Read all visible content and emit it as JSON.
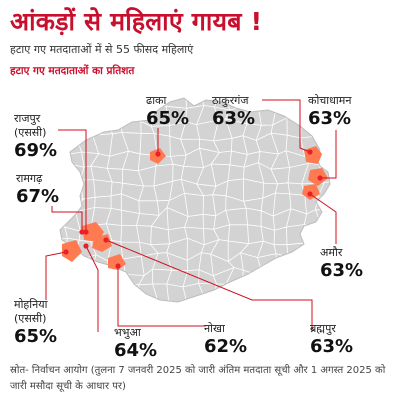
{
  "header": {
    "title": "आंकड़ों से महिलाएं गायब !",
    "subtitle": "हटाए गए मतदाताओं में से 55 फीसद महिलाएं",
    "chart_title": "हटाए गए मतदाताओं का प्रतिशत"
  },
  "colors": {
    "title": "#c8102e",
    "map_fill": "#d3d3d3",
    "district_lines": "#ffffff",
    "highlight": "#ff7a50",
    "marker": "#e8202a",
    "leader_line": "#d0101e"
  },
  "map": {
    "region": "बिहार",
    "highlighted_constituencies": [
      "ढाका",
      "ठाकुरगंज",
      "कोचाधामन",
      "अमौर",
      "ब्रह्मपुर",
      "नोखा",
      "भभुआ",
      "मोहनिया (एससी)",
      "रामगढ़",
      "राजपुर (एससी)"
    ]
  },
  "callouts": [
    {
      "name": "राजपुर",
      "name2": "(एससी)",
      "value": "69%"
    },
    {
      "name": "ढाका",
      "value": "65%"
    },
    {
      "name": "ठाकुरगंज",
      "value": "63%"
    },
    {
      "name": "कोचाधामन",
      "value": "63%"
    },
    {
      "name": "रामगढ़",
      "value": "67%"
    },
    {
      "name": "अमौर",
      "value": "63%"
    },
    {
      "name": "मोहनिया",
      "name2": "(एससी)",
      "value": "65%"
    },
    {
      "name": "भभुआ",
      "value": "64%"
    },
    {
      "name": "नोखा",
      "value": "62%"
    },
    {
      "name": "ब्रह्मपुर",
      "value": "63%"
    }
  ],
  "source": "स्रोत- निर्वाचन आयोग (तुलना 7 जनवरी 2025 को जारी अंतिम मतदाता सूची और 1 अगस्त 2025 को जारी मसौदा सूची के आधार पर)"
}
